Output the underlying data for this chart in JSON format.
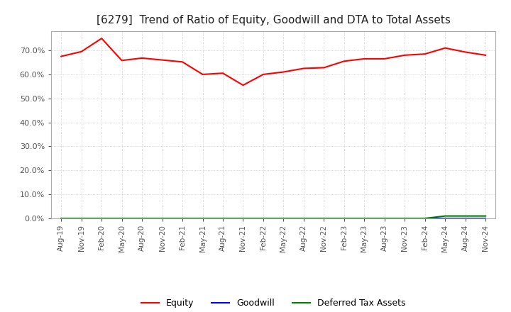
{
  "title": "[6279]  Trend of Ratio of Equity, Goodwill and DTA to Total Assets",
  "title_fontsize": 11,
  "background_color": "#ffffff",
  "plot_background_color": "#ffffff",
  "ylim": [
    0.0,
    0.78
  ],
  "yticks": [
    0.0,
    0.1,
    0.2,
    0.3,
    0.4,
    0.5,
    0.6,
    0.7
  ],
  "dates": [
    "Aug-19",
    "Nov-19",
    "Feb-20",
    "May-20",
    "Aug-20",
    "Nov-20",
    "Feb-21",
    "May-21",
    "Aug-21",
    "Nov-21",
    "Feb-22",
    "May-22",
    "Aug-22",
    "Nov-22",
    "Feb-23",
    "May-23",
    "Aug-23",
    "Nov-23",
    "Feb-24",
    "May-24",
    "Aug-24",
    "Nov-24"
  ],
  "equity": [
    0.675,
    0.695,
    0.75,
    0.658,
    0.668,
    0.66,
    0.652,
    0.6,
    0.605,
    0.555,
    0.6,
    0.61,
    0.625,
    0.628,
    0.655,
    0.665,
    0.665,
    0.68,
    0.685,
    0.71,
    0.693,
    0.68
  ],
  "goodwill": [
    0.0,
    0.0,
    0.0,
    0.0,
    0.0,
    0.0,
    0.0,
    0.0,
    0.0,
    0.0,
    0.0,
    0.0,
    0.0,
    0.0,
    0.0,
    0.0,
    0.0,
    0.0,
    0.0,
    0.0,
    0.0,
    0.0
  ],
  "dta": [
    0.0,
    0.0,
    0.0,
    0.0,
    0.0,
    0.0,
    0.0,
    0.0,
    0.0,
    0.0,
    0.0,
    0.0,
    0.0,
    0.0,
    0.0,
    0.0,
    0.0,
    0.0,
    0.0,
    0.01,
    0.01,
    0.01
  ],
  "equity_color": "#ff0000",
  "goodwill_color": "#0000ff",
  "dta_color": "#008000",
  "legend_labels": [
    "Equity",
    "Goodwill",
    "Deferred Tax Assets"
  ],
  "grid_color": "#aaaaaa",
  "tick_color": "#555555",
  "spine_color": "#aaaaaa"
}
